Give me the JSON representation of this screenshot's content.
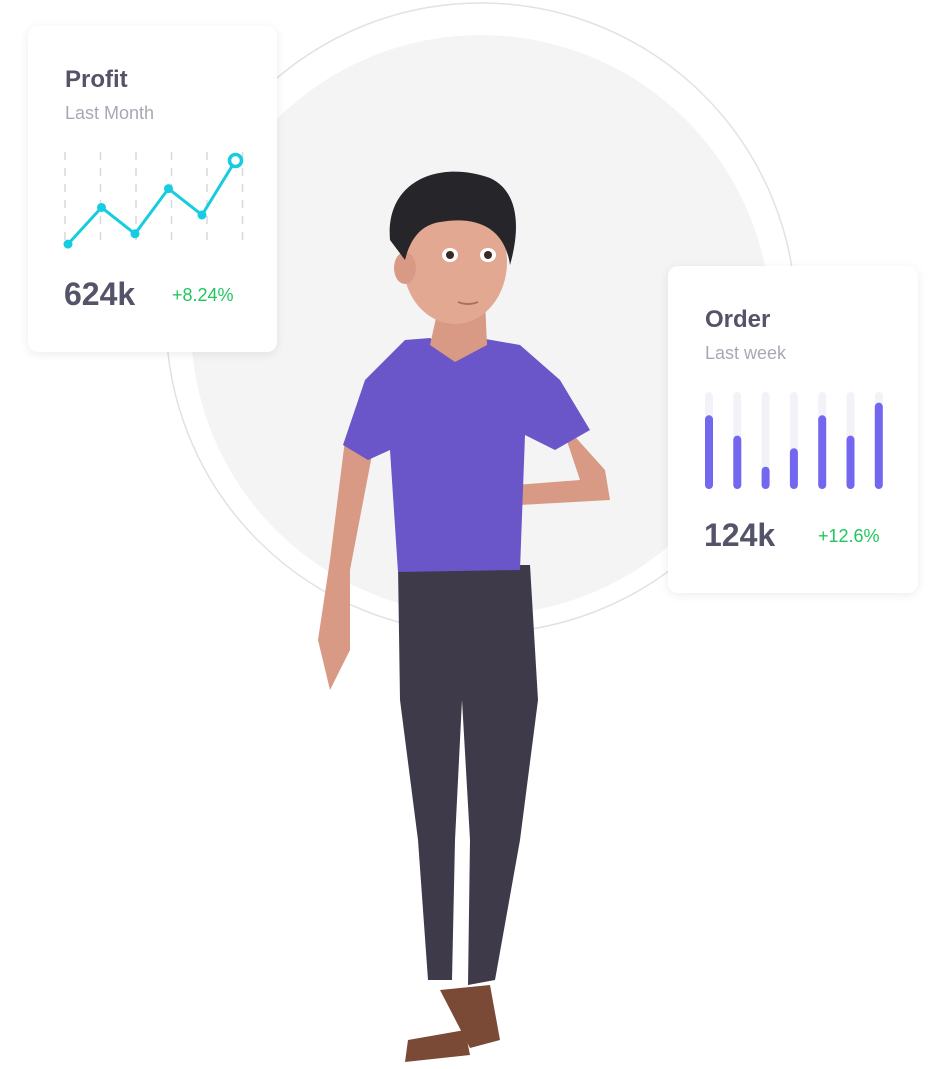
{
  "profit_card": {
    "title": "Profit",
    "subtitle": "Last Month",
    "value": "624k",
    "change": "+8.24%",
    "accent": "#16cde0"
  },
  "order_card": {
    "title": "Order",
    "subtitle": "Last week",
    "value": "124k",
    "change": "+12.6%",
    "accent": "#7367f0"
  },
  "chart_data": [
    {
      "type": "line",
      "values": [
        2,
        41,
        13,
        61,
        33,
        91
      ],
      "ylim": [
        0,
        100
      ],
      "grid": "vertical dashed",
      "color": "#16cde0"
    },
    {
      "type": "bar",
      "values": [
        0.76,
        0.55,
        0.23,
        0.42,
        0.76,
        0.55,
        0.89
      ],
      "ylim": [
        0,
        1
      ],
      "color": "#7367f0",
      "track_color": "#f3f2f8"
    }
  ],
  "colors": {
    "change_positive": "#22c55e",
    "shirt": "#6a55c9",
    "pants": "#3e3a4a"
  }
}
